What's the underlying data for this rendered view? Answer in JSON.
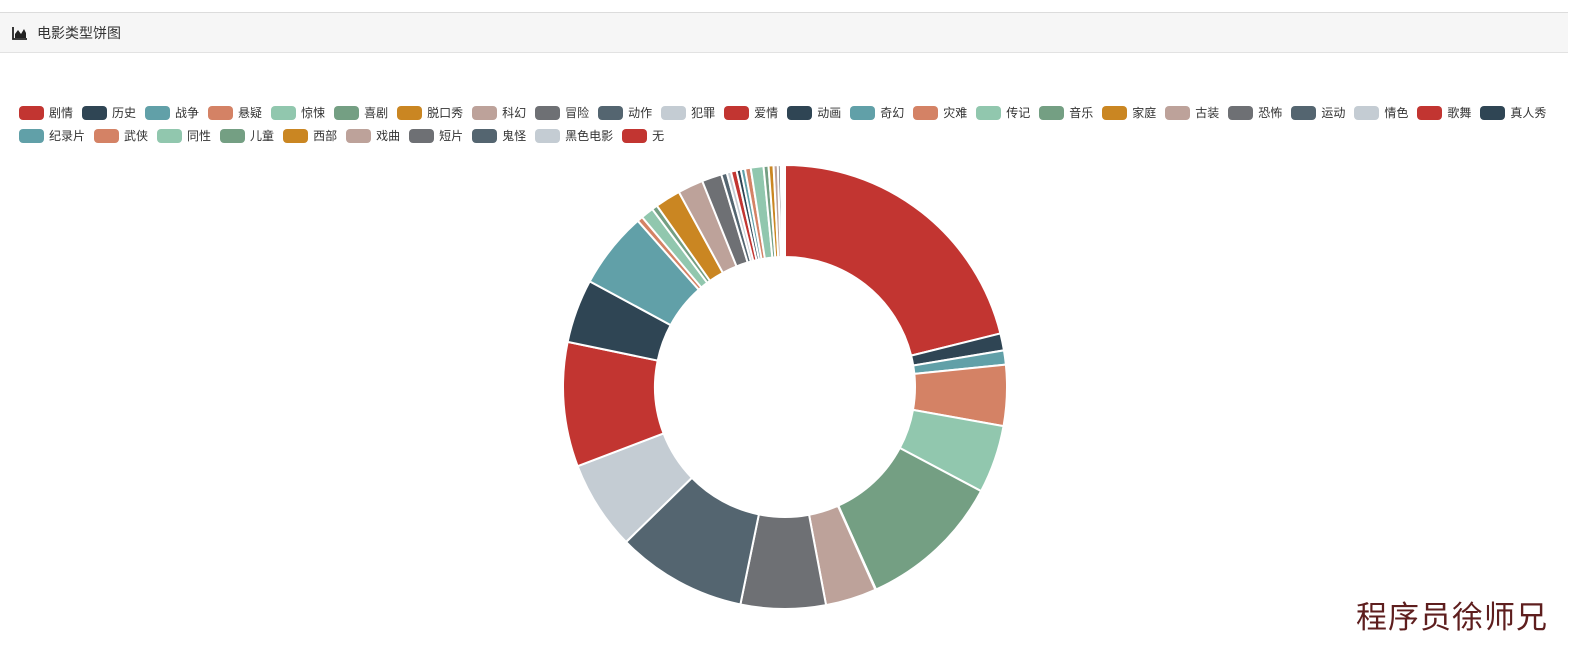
{
  "panel": {
    "title": "电影类型饼图",
    "icon": "area-chart-icon"
  },
  "watermark": "程序员徐师兄",
  "colors": [
    "#c23531",
    "#2f4554",
    "#61a0a8",
    "#d48265",
    "#91c7ae",
    "#749f83",
    "#ca8622",
    "#bda29a",
    "#6e7074",
    "#546570",
    "#c4ccd3"
  ],
  "chart_data": {
    "type": "pie",
    "donut": true,
    "legend_position": "top",
    "categories": [
      "剧情",
      "历史",
      "战争",
      "悬疑",
      "惊悚",
      "喜剧",
      "脱口秀",
      "科幻",
      "冒险",
      "动作",
      "犯罪",
      "爱情",
      "动画",
      "奇幻",
      "灾难",
      "传记",
      "音乐",
      "家庭",
      "古装",
      "恐怖",
      "运动",
      "情色",
      "歌舞",
      "真人秀",
      "纪录片",
      "武侠",
      "同性",
      "儿童",
      "西部",
      "戏曲",
      "短片",
      "鬼怪",
      "黑色电影",
      "无"
    ],
    "values": [
      20.5,
      1.2,
      1.0,
      4.3,
      4.8,
      10.2,
      0.05,
      3.6,
      6.0,
      9.2,
      6.3,
      8.8,
      4.5,
      5.4,
      0.4,
      0.9,
      0.4,
      1.8,
      1.8,
      1.4,
      0.4,
      0.3,
      0.4,
      0.3,
      0.3,
      0.4,
      0.9,
      0.35,
      0.35,
      0.3,
      0.2,
      0.1,
      0.1,
      0.1
    ]
  }
}
